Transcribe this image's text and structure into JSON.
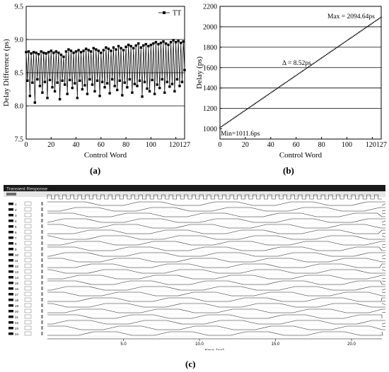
{
  "chart_data": [
    {
      "panel": "(a)",
      "type": "line",
      "xlabel": "Control Word",
      "ylabel": "Delay Difference (ps)",
      "xlim": [
        0,
        127
      ],
      "ylim": [
        7.5,
        9.5
      ],
      "xticks": [
        0,
        20,
        40,
        60,
        80,
        100,
        120,
        127
      ],
      "xtick_labels": [
        "0",
        "20",
        "40",
        "60",
        "80",
        "100",
        "120127"
      ],
      "yticks": [
        "7.5",
        "8.0",
        "8.5",
        "9.0",
        "9.5"
      ],
      "grid_y": [
        8.0,
        8.5,
        9.0
      ],
      "legend": "top-right",
      "series": [
        {
          "name": "TT",
          "marker": "square",
          "values": [
            8.81,
            8.38,
            8.82,
            8.15,
            8.79,
            8.35,
            8.81,
            8.05,
            8.8,
            8.4,
            8.78,
            8.3,
            8.82,
            8.2,
            8.8,
            8.36,
            8.79,
            8.12,
            8.81,
            8.39,
            8.83,
            8.28,
            8.8,
            8.22,
            8.82,
            8.35,
            8.8,
            8.1,
            8.77,
            8.38,
            8.74,
            8.32,
            8.82,
            8.18,
            8.85,
            8.39,
            8.83,
            8.27,
            8.8,
            8.34,
            8.82,
            8.12,
            8.84,
            8.38,
            8.81,
            8.25,
            8.83,
            8.31,
            8.86,
            8.18,
            8.84,
            8.4,
            8.82,
            8.32,
            8.87,
            8.22,
            8.85,
            8.38,
            8.83,
            8.15,
            8.8,
            8.36,
            8.84,
            8.28,
            8.88,
            8.34,
            8.86,
            8.19,
            8.83,
            8.4,
            8.88,
            8.3,
            8.85,
            8.24,
            8.9,
            8.38,
            8.87,
            8.16,
            8.84,
            8.35,
            8.89,
            8.28,
            8.92,
            8.4,
            8.9,
            8.2,
            8.87,
            8.33,
            8.91,
            8.3,
            8.94,
            8.38,
            8.88,
            8.14,
            8.91,
            8.36,
            8.93,
            8.26,
            8.9,
            8.22,
            8.92,
            8.39,
            8.94,
            8.18,
            8.96,
            8.32,
            8.93,
            8.27,
            8.95,
            8.4,
            8.97,
            8.2,
            8.94,
            8.36,
            8.92,
            8.29,
            8.96,
            8.33,
            8.99,
            8.22,
            8.96,
            8.4,
            8.98,
            8.3,
            8.95,
            8.36,
            8.97,
            8.54
          ]
        }
      ]
    },
    {
      "panel": "(b)",
      "type": "line",
      "xlabel": "Control Word",
      "ylabel": "Delay (ps)",
      "xlim": [
        0,
        127
      ],
      "ylim": [
        900,
        2200
      ],
      "xticks": [
        0,
        20,
        40,
        60,
        80,
        100,
        120,
        127
      ],
      "xtick_labels": [
        "0",
        "20",
        "40",
        "60",
        "80",
        "100",
        "120127"
      ],
      "yticks": [
        "1000",
        "1200",
        "1400",
        "1600",
        "1800",
        "2000",
        "2200"
      ],
      "grid_y": [
        1200,
        1400,
        1600,
        1800,
        2000
      ],
      "series": [
        {
          "x_start": 0,
          "x_end": 127,
          "y_start": 1011.6,
          "y_end": 2094.64,
          "step": 8.52
        }
      ],
      "annotations": {
        "max": "Max = 2094.64ps",
        "delta": "Δ = 8.52ps",
        "min": "Min=1011.6ps"
      }
    },
    {
      "panel": "(c)",
      "type": "line",
      "title": "Transient Response",
      "xlabel": "time (ns)",
      "xlim": [
        0,
        22
      ],
      "xticks": [
        "5.0",
        "10.0",
        "15.0",
        "20.0"
      ],
      "signal_count": 24,
      "period_ns": 5.0,
      "rise_time_ns": 1.0,
      "clock_period_ns": 0.5,
      "signal_labels": [
        "1",
        "2",
        "3",
        "4",
        "5",
        "6",
        "7",
        "8",
        "9",
        "10",
        "11",
        "12",
        "13",
        "14",
        "15",
        "16",
        "17",
        "18",
        "19",
        "20",
        "21",
        "22",
        "23",
        "24"
      ]
    }
  ],
  "panel_labels": {
    "a": "(a)",
    "b": "(b)",
    "c": "(c)"
  }
}
